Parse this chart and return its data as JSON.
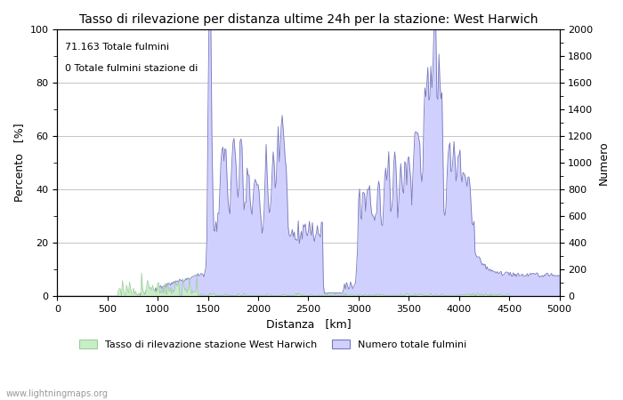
{
  "title": "Tasso di rilevazione per distanza ultime 24h per la stazione: West Harwich",
  "xlabel": "Distanza   [km]",
  "ylabel_left": "Percento   [%]",
  "ylabel_right": "Numero",
  "annotation_line1": "71.163 Totale fulmini",
  "annotation_line2": "0 Totale fulmini stazione di",
  "xlim": [
    0,
    5000
  ],
  "ylim_left": [
    0,
    100
  ],
  "ylim_right": [
    0,
    2000
  ],
  "legend_label_green": "Tasso di rilevazione stazione West Harwich",
  "legend_label_blue": "Numero totale fulmini",
  "fill_color_blue": "#d0d0ff",
  "fill_color_green": "#c8eec8",
  "line_color": "#7777bb",
  "line_color_green": "#99cc99",
  "background_color": "#ffffff",
  "grid_color": "#bbbbbb",
  "watermark": "www.lightningmaps.org",
  "title_fontsize": 10,
  "axis_fontsize": 9,
  "tick_fontsize": 8,
  "annotation_fontsize": 8
}
